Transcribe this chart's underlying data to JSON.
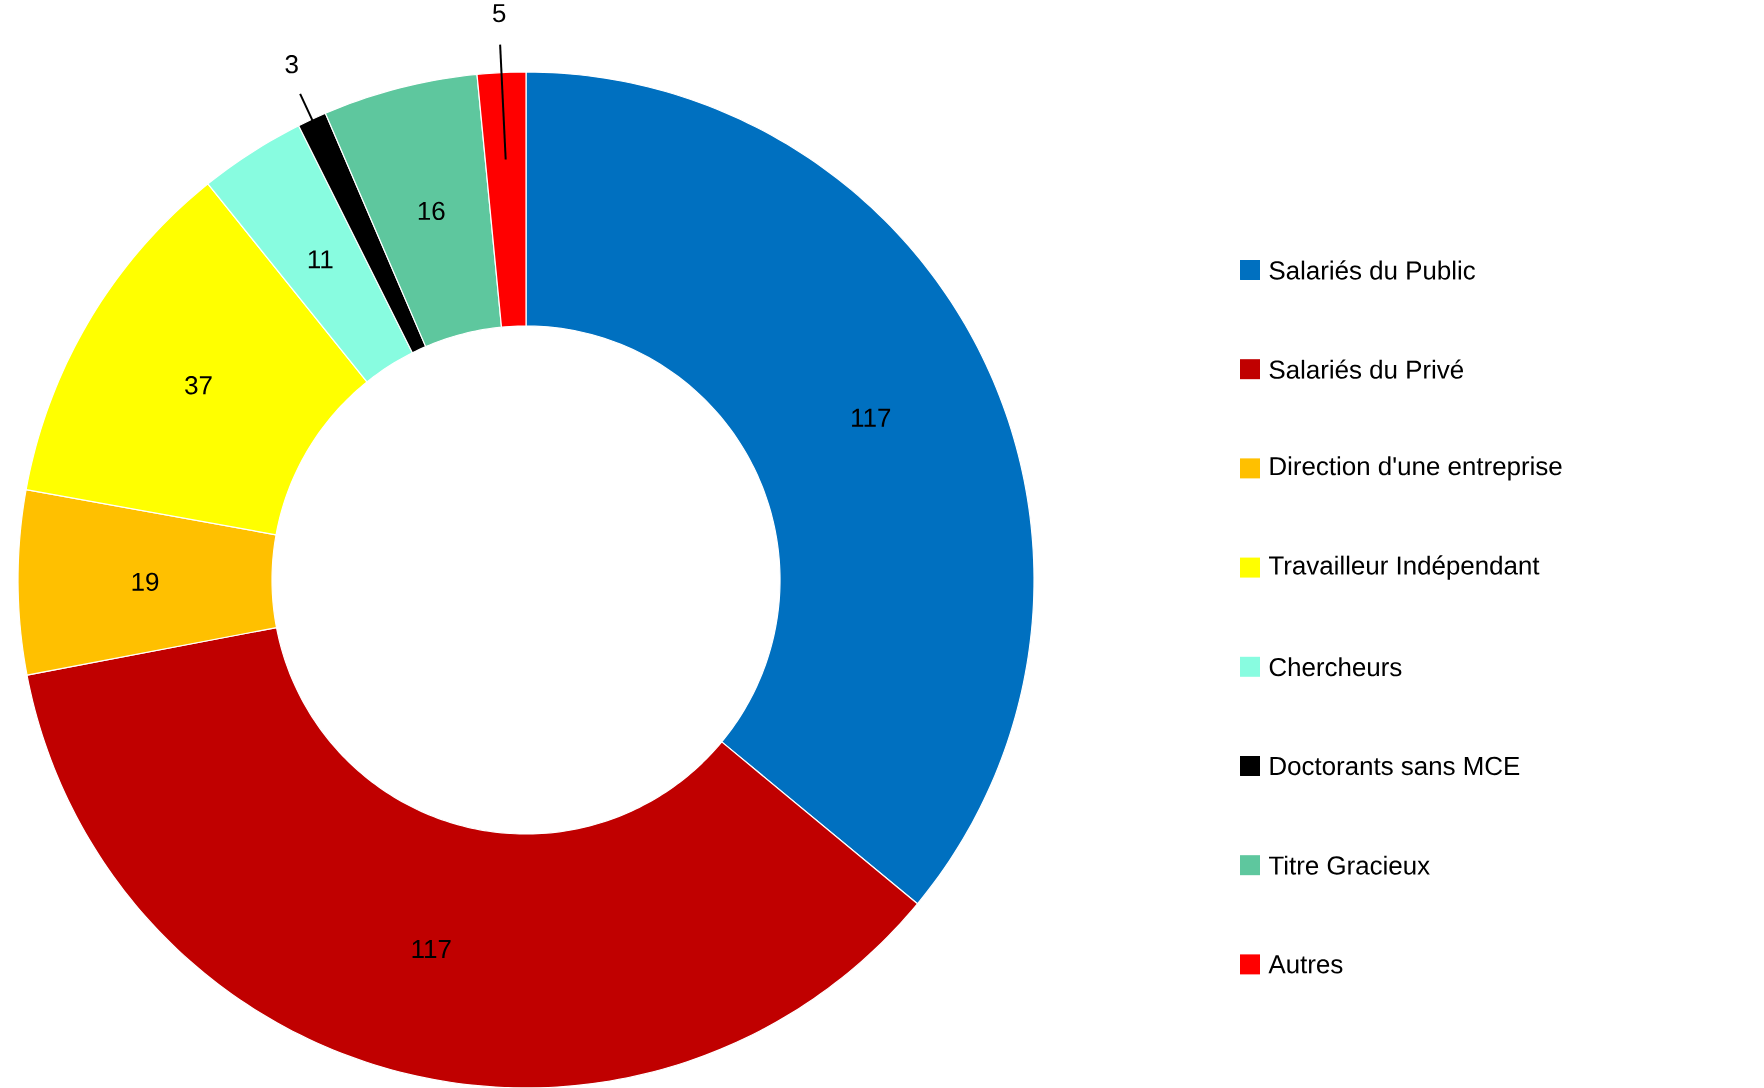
{
  "chart_data": {
    "type": "donut",
    "categories": [
      "Salariés du Public",
      "Salariés du Privé",
      "Direction d'une entreprise",
      "Travailleur Indépendant",
      "Chercheurs",
      "Doctorants sans MCE",
      "Titre Gracieux",
      "Autres"
    ],
    "values": [
      117,
      117,
      19,
      37,
      11,
      3,
      16,
      5
    ],
    "colors": [
      "#0070c0",
      "#c00000",
      "#ffc000",
      "#ffff00",
      "#88fce0",
      "#000000",
      "#5ec79e",
      "#ff0000"
    ],
    "data_labels": true,
    "legend": "right"
  }
}
